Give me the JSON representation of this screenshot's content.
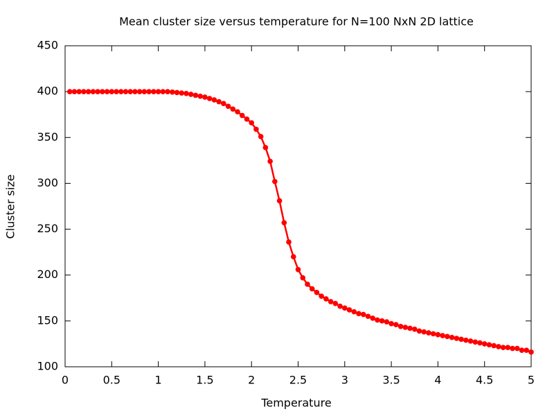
{
  "chart_data": {
    "type": "line",
    "title": "Mean cluster size versus temperature for N=100 NxN 2D lattice",
    "x_label": "Temperature",
    "y_label": "Cluster size",
    "x": [
      0.05,
      0.1,
      0.15,
      0.2,
      0.25,
      0.3,
      0.35,
      0.4,
      0.45,
      0.5,
      0.55,
      0.6,
      0.65,
      0.7,
      0.75,
      0.8,
      0.85,
      0.9,
      0.95,
      1.0,
      1.05,
      1.1,
      1.15,
      1.2,
      1.25,
      1.3,
      1.35,
      1.4,
      1.45,
      1.5,
      1.55,
      1.6,
      1.65,
      1.7,
      1.75,
      1.8,
      1.85,
      1.9,
      1.95,
      2.0,
      2.05,
      2.1,
      2.15,
      2.2,
      2.25,
      2.3,
      2.35,
      2.4,
      2.45,
      2.5,
      2.55,
      2.6,
      2.65,
      2.7,
      2.75,
      2.8,
      2.85,
      2.9,
      2.95,
      3.0,
      3.05,
      3.1,
      3.15,
      3.2,
      3.25,
      3.3,
      3.35,
      3.4,
      3.45,
      3.5,
      3.55,
      3.6,
      3.65,
      3.7,
      3.75,
      3.8,
      3.85,
      3.9,
      3.95,
      4.0,
      4.05,
      4.1,
      4.15,
      4.2,
      4.25,
      4.3,
      4.35,
      4.4,
      4.45,
      4.5,
      4.55,
      4.6,
      4.65,
      4.7,
      4.75,
      4.8,
      4.85,
      4.9,
      4.95,
      5.0
    ],
    "values": [
      400,
      400,
      400,
      400,
      400,
      400,
      400,
      400,
      400,
      400,
      400,
      400,
      400,
      400,
      400,
      400,
      400,
      400,
      400,
      400,
      400,
      400,
      399.5,
      399,
      398.5,
      398,
      397,
      396,
      395,
      394,
      392.5,
      391,
      389,
      387,
      384,
      381,
      378,
      374,
      370,
      366,
      359,
      351,
      339,
      324,
      302,
      281,
      257,
      236,
      220,
      206,
      197,
      190,
      185,
      181,
      177,
      174,
      171,
      169,
      166,
      164,
      162,
      160,
      158,
      157,
      155,
      153,
      151,
      150,
      149,
      147,
      146,
      144,
      143,
      142,
      141,
      139,
      138,
      137,
      136,
      135,
      134,
      133,
      132,
      131,
      130,
      129,
      128,
      127,
      126,
      125,
      124,
      123,
      122,
      121,
      121,
      120,
      120,
      118,
      118,
      116
    ],
    "color": "#ff0000",
    "xlim": [
      0,
      5
    ],
    "xticks": [
      0,
      0.5,
      1,
      1.5,
      2,
      2.5,
      3,
      3.5,
      4,
      4.5,
      5
    ],
    "ylim": [
      100,
      450
    ],
    "yticks": [
      100,
      150,
      200,
      250,
      300,
      350,
      400,
      450
    ]
  }
}
